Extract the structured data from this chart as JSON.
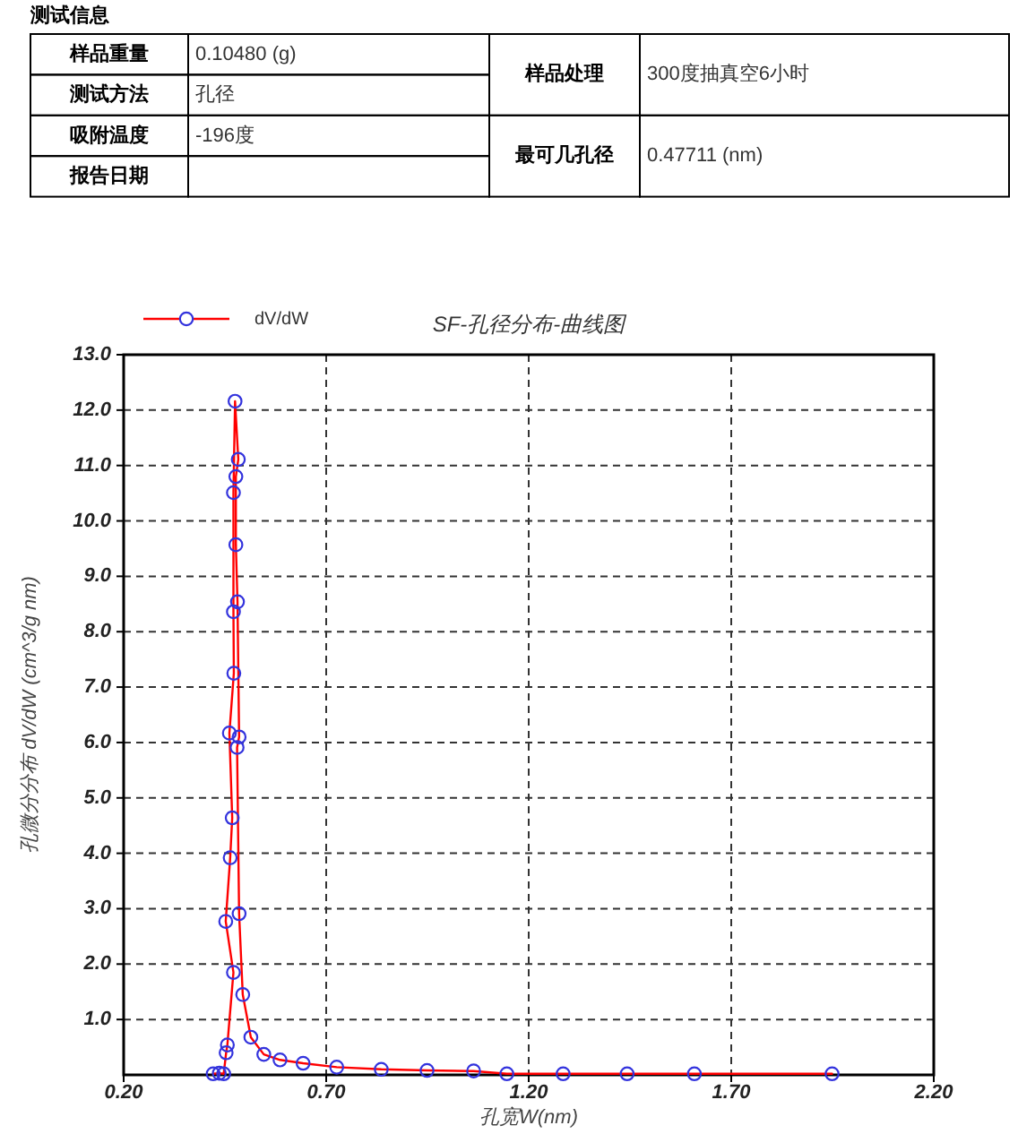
{
  "chart_data": [
    {
      "type": "other",
      "title": "测试信息",
      "annotations": [
        "样品重量",
        "0.10480 (g)",
        "测试方法",
        "孔径",
        "吸附温度",
        "-196度",
        "报告日期",
        "样品处理",
        "300度抽真空6小时",
        "最可几孔径",
        "0.47711 (nm)"
      ]
    },
    {
      "type": "line",
      "title": "SF-孔径分布-曲线图",
      "xlabel": "孔宽W(nm)",
      "ylabel": "孔微分分布 dV/dW (cm^3/g nm)",
      "legend": "top left",
      "grid": true,
      "marker": "circle",
      "xlim": [
        0.2,
        2.2
      ],
      "xticks": [
        {
          "value": 0.2,
          "label": "0.20"
        },
        {
          "value": 0.7,
          "label": "0.70"
        },
        {
          "value": 1.2,
          "label": "1.20"
        },
        {
          "value": 1.7,
          "label": "1.70"
        },
        {
          "value": 2.2,
          "label": "2.20"
        }
      ],
      "ylim": [
        0,
        13
      ],
      "yticks": [
        {
          "value": 1,
          "label": "1.0"
        },
        {
          "value": 2,
          "label": "2.0"
        },
        {
          "value": 3,
          "label": "3.0"
        },
        {
          "value": 4,
          "label": "4.0"
        },
        {
          "value": 5,
          "label": "5.0"
        },
        {
          "value": 6,
          "label": "6.0"
        },
        {
          "value": 7,
          "label": "7.0"
        },
        {
          "value": 8,
          "label": "8.0"
        },
        {
          "value": 9,
          "label": "9.0"
        },
        {
          "value": 10,
          "label": "10.0"
        },
        {
          "value": 11,
          "label": "11.0"
        },
        {
          "value": 12,
          "label": "12.0"
        },
        {
          "value": 13,
          "label": "13.0"
        }
      ],
      "series": [
        {
          "name": "dV/dW",
          "color": "#ff0000",
          "x": [
            0.421,
            0.436,
            0.447,
            0.453,
            0.456,
            0.471,
            0.452,
            0.463,
            0.468,
            0.461,
            0.472,
            0.471,
            0.471,
            0.475,
            0.483,
            0.477,
            0.477,
            0.481,
            0.485,
            0.48,
            0.485,
            0.494,
            0.514,
            0.546,
            0.586,
            0.643,
            0.726,
            0.836,
            0.949,
            1.064,
            1.146,
            1.285,
            1.443,
            1.609,
            1.949
          ],
          "values": [
            0.02,
            0.03,
            0.02,
            0.4,
            0.54,
            1.85,
            2.77,
            3.92,
            4.64,
            6.17,
            7.25,
            8.36,
            10.51,
            12.16,
            11.11,
            10.8,
            9.57,
            8.54,
            6.1,
            5.91,
            2.91,
            1.45,
            0.68,
            0.37,
            0.27,
            0.21,
            0.14,
            0.1,
            0.08,
            0.07,
            0.02,
            0.02,
            0.02,
            0.02,
            0.02
          ],
          "colors": [
            "#3333dd",
            "#3333dd",
            "#3333dd",
            "#3333dd",
            "#3333dd",
            "#3333dd",
            "#3333dd",
            "#3333dd",
            "#3333dd",
            "#3333dd",
            "#3333dd",
            "#3333dd",
            "#3333dd",
            "#3333dd",
            "#3333dd",
            "#3333dd",
            "#3333dd",
            "#3333dd",
            "#3333dd",
            "#3333dd",
            "#3333dd",
            "#3333dd",
            "#3333dd",
            "#3333dd",
            "#3333dd",
            "#3333dd",
            "#3333dd",
            "#3333dd",
            "#3333dd",
            "#3333dd",
            "#3333dd",
            "#3333dd",
            "#3333dd",
            "#3333dd",
            "#3333dd"
          ]
        }
      ]
    }
  ]
}
